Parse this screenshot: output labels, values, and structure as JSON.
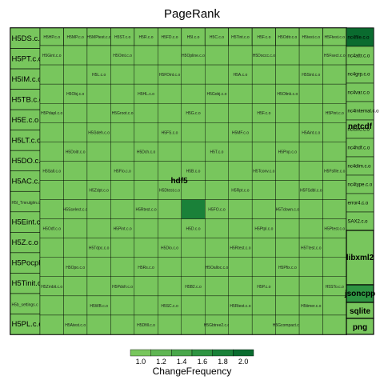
{
  "chart_data": {
    "type": "treemap",
    "title": "PageRank",
    "legend": {
      "title": "ChangeFrequency",
      "ticks": [
        1.0,
        1.2,
        1.4,
        1.6,
        1.8,
        2.0
      ],
      "tick_labels": [
        "1.0",
        "1.2",
        "1.4",
        "1.6",
        "1.8",
        "2.0"
      ],
      "colors": [
        "#78c65d",
        "#5fb553",
        "#49a74b",
        "#2e9442",
        "#1a8139",
        "#0a6b2f"
      ]
    },
    "groups": [
      {
        "name": "hdf5",
        "label": "hdf5"
      },
      {
        "name": "netcdf",
        "label": "netcdf"
      },
      {
        "name": "libxml2",
        "label": "libxml2"
      },
      {
        "name": "jsoncpp",
        "label": "jsoncpp"
      },
      {
        "name": "sqlite",
        "label": "sqlite"
      },
      {
        "name": "png",
        "label": "png"
      }
    ],
    "left_column": [
      "H5DS.c.o",
      "H5PT.c.o",
      "H5IM.c.o",
      "H5TB.c.o",
      "H5E.c.o",
      "H5LT.c.o",
      "H5DO.c.o",
      "H5AC.c.o",
      "H5I_Tmrulglm.c.o",
      "H5Eint.c.o",
      "H5Z.c.o",
      "H5Pocpl.c.o",
      "H5Tinit.c",
      "H5b_settings.c",
      "H5PL.c.o"
    ],
    "top_row": [
      "H5HP.c.o",
      "H5MP.c.o",
      "H5MPtest.c.o",
      "H5ST.c.o",
      "H5R.c.o",
      "H5FD.c.o",
      "H5I.c.o",
      "H5C.c.o",
      "H5Tint.c.o",
      "H5F.c.o",
      "H5Odtr.c.o",
      "H5test.c.o",
      "H5Ftest.c.o"
    ],
    "inner_labels": [
      "H5Gint.c.o",
      "H5Oint.c.o",
      "H5Opline.c.o",
      "H5Doccc.c.o",
      "H5Fsect.c.o",
      "H5L.c.o",
      "H5FDint.c.o",
      "H5A.c.o",
      "H5Sint.c.o",
      "H5Obj.c.o",
      "H5HL.c.o",
      "H5Gobj.c.o",
      "H5Olink.c.o",
      "H5Pdapl.c.o",
      "H5Groot.c.o",
      "H5G.c.o",
      "H5F.c.o",
      "H5Pint.c.o",
      "H5Gdeh.c.o",
      "H5FS.c.o",
      "H5MF.c.o",
      "H5Aint.c.o",
      "H5Doitr.c.o",
      "H5Dch.c.o",
      "H5T.c.o",
      "H5Pnp.c.o",
      "H5Sall.c.o",
      "H5Fio.c.o",
      "H5B.c.o",
      "H5Tconv.c.o",
      "H5Fsfile.c.o",
      "H5Zdpt.c.o",
      "H5Dtest.c.o",
      "H5Rpt.c.o",
      "H5FSdbl.c.o",
      "H5Sselect.c.o",
      "H5Rtest.c.o",
      "H5FO.c.o",
      "H5Tdown.c.o",
      "H5Odf.c.o",
      "H5Pint.c.o",
      "H5D.c.o",
      "H5Ptpl.c.o",
      "H5Ptest.c.o",
      "H5Tdpc.c.o",
      "H5Dio.c.o",
      "H5Rtest.c.o",
      "H5Ttest.c.o",
      "H5Opo.c.o",
      "H5Rs.c.o",
      "H5Oalloc.c.o",
      "H5Pfix.c.o",
      "H5Zmbit.c.o",
      "H5Pdxfr.c.o",
      "H5B2.c.o",
      "H5P.c.o",
      "H5STo.c.o",
      "H5WB.c.o",
      "H5SC.c.o",
      "H5Rtest.c.o",
      "H5timer.c.o",
      "H5Atest.c.o",
      "H5Dfill.c.o",
      "H5Gbtree2.c.o",
      "H5Gcompact.c.o",
      "H5Gent.c.o",
      "H5Ostate.c.o",
      "H5S.c.o",
      "H5Tinit.c.o",
      "H5Ovr.c.o"
    ],
    "right_column": [
      "nc4file.c.o",
      "nc4attr.c.o",
      "nc4grp.c.o",
      "nc4var.c.o",
      "nc4internal.c.o",
      "ncfunc.c.o",
      "nc4hdf.c.o",
      "nc4dim.c.o",
      "nc4type.c.o",
      "error4.c.o",
      "SAX2.c.o"
    ],
    "featured_labels": [
      "H5Dcompact.c.o",
      "H5Pocpl.c.o",
      "H5C.c.o",
      "H5Oint.c.o",
      "H5Pcpl.c.o",
      "H5Dint.c.o",
      "H5Pget.c.o",
      "H5Sint.c.o",
      "H5G.c.o",
      "H5Olink.c.o"
    ]
  }
}
